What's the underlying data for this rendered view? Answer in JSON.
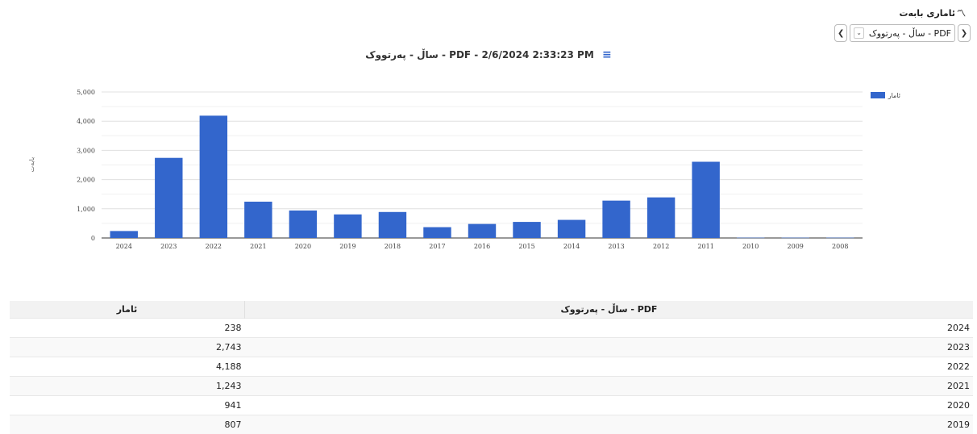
{
  "header": {
    "title": "ئاماری بابەت",
    "icon": "line-chart-icon"
  },
  "toolbar": {
    "selected": "ساڵ - پەرتووک - PDF",
    "prev": "❮",
    "next": "❯"
  },
  "chart_title": "ساڵ - پەرتووک - PDF - 2/6/2024 2:33:23 PM",
  "chart_menu_icon": "hamburger-menu-icon",
  "chart_data": {
    "type": "bar",
    "categories": [
      "2024",
      "2023",
      "2022",
      "2021",
      "2020",
      "2019",
      "2018",
      "2017",
      "2016",
      "2015",
      "2014",
      "2013",
      "2012",
      "2011",
      "2010",
      "2009",
      "2008"
    ],
    "series": [
      {
        "name": "ئامار",
        "color": "#3366cc",
        "values": [
          238,
          2743,
          4188,
          1243,
          941,
          807,
          890,
          370,
          480,
          550,
          620,
          1280,
          1390,
          2610,
          10,
          10,
          10
        ]
      }
    ],
    "ylabel": "بابەت",
    "ylim": [
      0,
      5000
    ],
    "yticks": [
      "0",
      "1,000",
      "2,000",
      "3,000",
      "4,000",
      "5,000"
    ],
    "grid": true,
    "legend": "top-right"
  },
  "table": {
    "headers": {
      "value": "ئامار",
      "year": "ساڵ - پەرتووک - PDF"
    },
    "rows": [
      {
        "value": "238",
        "year": "2024"
      },
      {
        "value": "2,743",
        "year": "2023"
      },
      {
        "value": "4,188",
        "year": "2022"
      },
      {
        "value": "1,243",
        "year": "2021"
      },
      {
        "value": "941",
        "year": "2020"
      },
      {
        "value": "807",
        "year": "2019"
      }
    ]
  }
}
